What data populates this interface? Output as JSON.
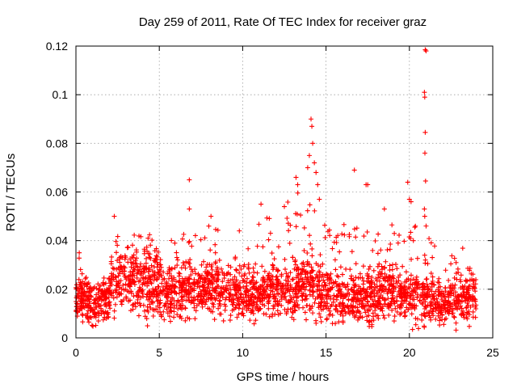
{
  "chart_data": {
    "type": "scatter",
    "title": "Day 259 of 2011, Rate Of TEC Index for receiver graz",
    "xlabel": "GPS time / hours",
    "ylabel": "ROTI / TECUs",
    "xlim": [
      0,
      25
    ],
    "ylim": [
      0,
      0.12
    ],
    "x_ticks": [
      "0",
      "5",
      "10",
      "15",
      "20",
      "25"
    ],
    "y_ticks": [
      "0",
      "0.02",
      "0.04",
      "0.06",
      "0.08",
      "0.1",
      "0.12"
    ],
    "grid": true,
    "marker": "plus",
    "color": "#ff0000",
    "density_profile": [
      {
        "x": 0.0,
        "base": 0.016,
        "spread": 0.006,
        "peak": 0.035
      },
      {
        "x": 1.0,
        "base": 0.014,
        "spread": 0.006,
        "peak": 0.024
      },
      {
        "x": 2.0,
        "base": 0.016,
        "spread": 0.006,
        "peak": 0.03
      },
      {
        "x": 2.5,
        "base": 0.024,
        "spread": 0.009,
        "peak": 0.044
      },
      {
        "x": 3.5,
        "base": 0.022,
        "spread": 0.009,
        "peak": 0.043
      },
      {
        "x": 4.5,
        "base": 0.022,
        "spread": 0.009,
        "peak": 0.043
      },
      {
        "x": 5.5,
        "base": 0.017,
        "spread": 0.007,
        "peak": 0.04
      },
      {
        "x": 7.0,
        "base": 0.02,
        "spread": 0.008,
        "peak": 0.045
      },
      {
        "x": 8.0,
        "base": 0.022,
        "spread": 0.008,
        "peak": 0.05
      },
      {
        "x": 9.0,
        "base": 0.018,
        "spread": 0.007,
        "peak": 0.04
      },
      {
        "x": 10.0,
        "base": 0.017,
        "spread": 0.007,
        "peak": 0.03
      },
      {
        "x": 11.0,
        "base": 0.018,
        "spread": 0.007,
        "peak": 0.055
      },
      {
        "x": 12.0,
        "base": 0.02,
        "spread": 0.008,
        "peak": 0.05
      },
      {
        "x": 13.0,
        "base": 0.019,
        "spread": 0.008,
        "peak": 0.06
      },
      {
        "x": 14.0,
        "base": 0.022,
        "spread": 0.009,
        "peak": 0.063
      },
      {
        "x": 15.0,
        "base": 0.017,
        "spread": 0.007,
        "peak": 0.045
      },
      {
        "x": 16.5,
        "base": 0.016,
        "spread": 0.007,
        "peak": 0.048
      },
      {
        "x": 18.0,
        "base": 0.017,
        "spread": 0.007,
        "peak": 0.045
      },
      {
        "x": 19.0,
        "base": 0.018,
        "spread": 0.008,
        "peak": 0.05
      },
      {
        "x": 20.0,
        "base": 0.016,
        "spread": 0.007,
        "peak": 0.048
      },
      {
        "x": 21.0,
        "base": 0.016,
        "spread": 0.007,
        "peak": 0.046
      },
      {
        "x": 22.0,
        "base": 0.014,
        "spread": 0.006,
        "peak": 0.03
      },
      {
        "x": 23.0,
        "base": 0.016,
        "spread": 0.007,
        "peak": 0.041
      },
      {
        "x": 24.0,
        "base": 0.016,
        "spread": 0.006,
        "peak": 0.03
      }
    ],
    "notable_points": [
      {
        "x": 0.2,
        "y": 0.035
      },
      {
        "x": 2.3,
        "y": 0.05
      },
      {
        "x": 6.8,
        "y": 0.065
      },
      {
        "x": 6.8,
        "y": 0.053
      },
      {
        "x": 8.1,
        "y": 0.05
      },
      {
        "x": 9.8,
        "y": 0.044
      },
      {
        "x": 11.1,
        "y": 0.055
      },
      {
        "x": 12.5,
        "y": 0.054
      },
      {
        "x": 13.2,
        "y": 0.066
      },
      {
        "x": 13.3,
        "y": 0.063
      },
      {
        "x": 13.9,
        "y": 0.07
      },
      {
        "x": 14.0,
        "y": 0.075
      },
      {
        "x": 14.1,
        "y": 0.09
      },
      {
        "x": 14.15,
        "y": 0.087
      },
      {
        "x": 14.2,
        "y": 0.08
      },
      {
        "x": 14.3,
        "y": 0.072
      },
      {
        "x": 14.4,
        "y": 0.068
      },
      {
        "x": 14.5,
        "y": 0.063
      },
      {
        "x": 14.6,
        "y": 0.057
      },
      {
        "x": 16.7,
        "y": 0.069
      },
      {
        "x": 17.4,
        "y": 0.063
      },
      {
        "x": 17.5,
        "y": 0.063
      },
      {
        "x": 18.5,
        "y": 0.053
      },
      {
        "x": 19.9,
        "y": 0.064
      },
      {
        "x": 20.0,
        "y": 0.057
      },
      {
        "x": 20.1,
        "y": 0.056
      },
      {
        "x": 20.95,
        "y": 0.1185
      },
      {
        "x": 21.0,
        "y": 0.118
      },
      {
        "x": 20.9,
        "y": 0.101
      },
      {
        "x": 20.92,
        "y": 0.099
      },
      {
        "x": 20.95,
        "y": 0.0845
      },
      {
        "x": 20.93,
        "y": 0.076
      },
      {
        "x": 20.97,
        "y": 0.0645
      },
      {
        "x": 20.9,
        "y": 0.053
      },
      {
        "x": 20.92,
        "y": 0.05
      },
      {
        "x": 21.0,
        "y": 0.046
      }
    ]
  }
}
